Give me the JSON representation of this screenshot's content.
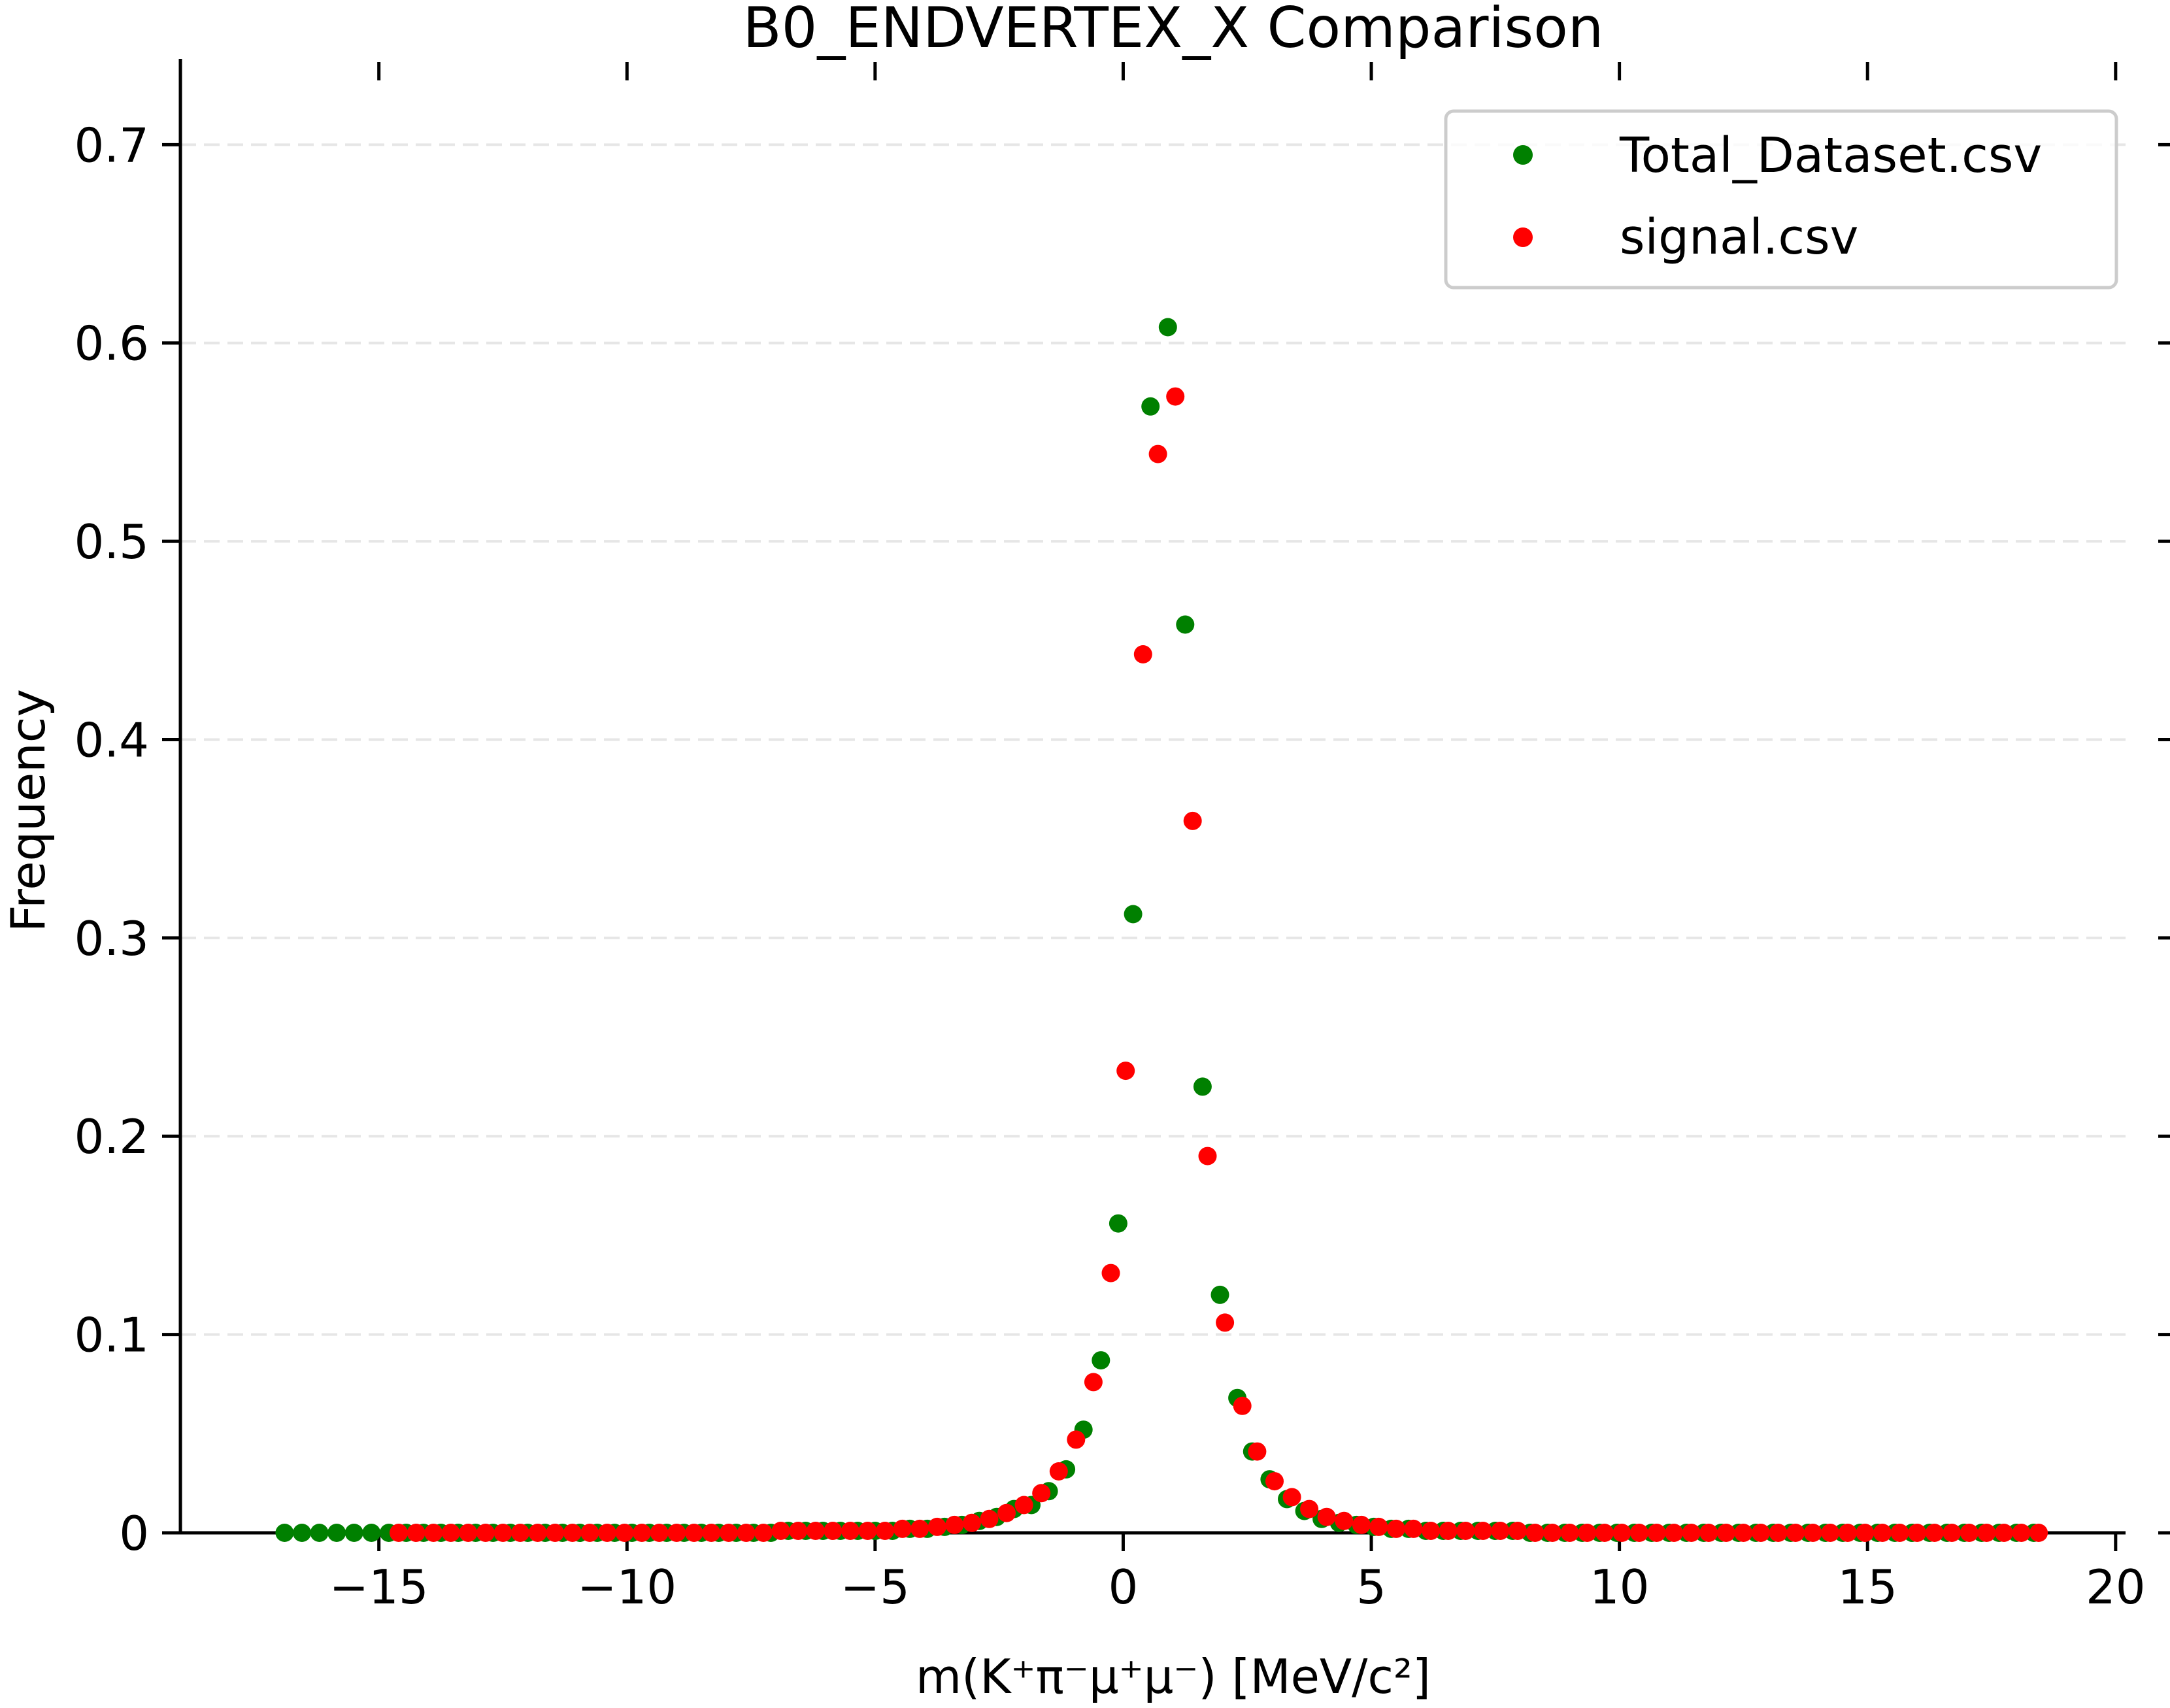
{
  "chart_data": {
    "type": "scatter",
    "title": "B0_ENDVERTEX_X Comparison",
    "xlabel": "m(K⁺π⁻μ⁺μ⁻) [MeV/c²]",
    "ylabel": "Frequency",
    "xlim": [
      -19,
      20.2
    ],
    "ylim": [
      0,
      0.74
    ],
    "xticks": [
      -15,
      -10,
      -5,
      0,
      5,
      10,
      15,
      20
    ],
    "xtick_labels": [
      "−15",
      "−10",
      "−5",
      "0",
      "5",
      "10",
      "15",
      "20"
    ],
    "yticks": [
      0,
      0.1,
      0.2,
      0.3,
      0.4,
      0.5,
      0.6,
      0.7
    ],
    "ytick_labels": [
      "0",
      "0.1",
      "0.2",
      "0.3",
      "0.4",
      "0.5",
      "0.6",
      "0.7"
    ],
    "grid": "horizontal dashed",
    "legend_position": "top-right",
    "series": [
      {
        "name": "Total_Dataset.csv",
        "color": "#008000",
        "points": [
          [
            -16.9,
            0
          ],
          [
            -16.55,
            0
          ],
          [
            -16.2,
            0
          ],
          [
            -15.85,
            0
          ],
          [
            -15.5,
            0
          ],
          [
            -15.15,
            0
          ],
          [
            -14.8,
            0
          ],
          [
            -14.45,
            0
          ],
          [
            -14.1,
            0
          ],
          [
            -13.75,
            0
          ],
          [
            -13.4,
            0
          ],
          [
            -13.05,
            0
          ],
          [
            -12.7,
            0
          ],
          [
            -12.35,
            0
          ],
          [
            -12.0,
            0
          ],
          [
            -11.65,
            0
          ],
          [
            -11.3,
            0
          ],
          [
            -10.95,
            0
          ],
          [
            -10.6,
            0
          ],
          [
            -10.25,
            0
          ],
          [
            -9.9,
            0
          ],
          [
            -9.55,
            0
          ],
          [
            -9.2,
            0
          ],
          [
            -8.85,
            0
          ],
          [
            -8.5,
            0
          ],
          [
            -8.15,
            0
          ],
          [
            -7.8,
            0
          ],
          [
            -7.45,
            0
          ],
          [
            -7.1,
            0
          ],
          [
            -6.75,
            0.001
          ],
          [
            -6.4,
            0.001
          ],
          [
            -6.05,
            0.001
          ],
          [
            -5.7,
            0.001
          ],
          [
            -5.35,
            0.001
          ],
          [
            -5.0,
            0.001
          ],
          [
            -4.65,
            0.001
          ],
          [
            -4.3,
            0.002
          ],
          [
            -3.95,
            0.002
          ],
          [
            -3.6,
            0.003
          ],
          [
            -3.25,
            0.004
          ],
          [
            -2.9,
            0.006
          ],
          [
            -2.55,
            0.008
          ],
          [
            -2.2,
            0.012
          ],
          [
            -1.85,
            0.014
          ],
          [
            -1.5,
            0.021
          ],
          [
            -1.15,
            0.032
          ],
          [
            -0.8,
            0.052
          ],
          [
            -0.45,
            0.087
          ],
          [
            -0.1,
            0.156
          ],
          [
            0.2,
            0.312
          ],
          [
            0.55,
            0.568
          ],
          [
            0.9,
            0.608
          ],
          [
            1.25,
            0.458
          ],
          [
            1.6,
            0.225
          ],
          [
            1.95,
            0.12
          ],
          [
            2.3,
            0.068
          ],
          [
            2.6,
            0.041
          ],
          [
            2.95,
            0.027
          ],
          [
            3.3,
            0.017
          ],
          [
            3.65,
            0.011
          ],
          [
            4.0,
            0.007
          ],
          [
            4.35,
            0.005
          ],
          [
            4.7,
            0.004
          ],
          [
            5.05,
            0.003
          ],
          [
            5.4,
            0.002
          ],
          [
            5.75,
            0.002
          ],
          [
            6.1,
            0.001
          ],
          [
            6.45,
            0.001
          ],
          [
            6.8,
            0.001
          ],
          [
            7.15,
            0.001
          ],
          [
            7.5,
            0.001
          ],
          [
            7.85,
            0.001
          ],
          [
            8.2,
            0
          ],
          [
            8.55,
            0
          ],
          [
            8.9,
            0
          ],
          [
            9.25,
            0
          ],
          [
            9.6,
            0
          ],
          [
            9.95,
            0
          ],
          [
            10.3,
            0
          ],
          [
            10.65,
            0
          ],
          [
            11.0,
            0
          ],
          [
            11.35,
            0
          ],
          [
            11.7,
            0
          ],
          [
            12.05,
            0
          ],
          [
            12.4,
            0
          ],
          [
            12.75,
            0
          ],
          [
            13.1,
            0
          ],
          [
            13.45,
            0
          ],
          [
            13.8,
            0
          ],
          [
            14.15,
            0
          ],
          [
            14.5,
            0
          ],
          [
            14.85,
            0
          ],
          [
            15.2,
            0
          ],
          [
            15.55,
            0
          ],
          [
            15.9,
            0
          ],
          [
            16.25,
            0
          ],
          [
            16.6,
            0
          ],
          [
            16.95,
            0
          ],
          [
            17.3,
            0
          ],
          [
            17.65,
            0
          ],
          [
            18.0,
            0
          ],
          [
            18.35,
            0
          ]
        ]
      },
      {
        "name": "signal.csv",
        "color": "#ff0000",
        "points": [
          [
            -14.6,
            0
          ],
          [
            -14.25,
            0
          ],
          [
            -13.9,
            0
          ],
          [
            -13.55,
            0
          ],
          [
            -13.2,
            0
          ],
          [
            -12.85,
            0
          ],
          [
            -12.5,
            0
          ],
          [
            -12.15,
            0
          ],
          [
            -11.8,
            0
          ],
          [
            -11.45,
            0
          ],
          [
            -11.1,
            0
          ],
          [
            -10.75,
            0
          ],
          [
            -10.4,
            0
          ],
          [
            -10.05,
            0
          ],
          [
            -9.7,
            0
          ],
          [
            -9.35,
            0
          ],
          [
            -9.0,
            0
          ],
          [
            -8.65,
            0
          ],
          [
            -8.3,
            0
          ],
          [
            -7.95,
            0
          ],
          [
            -7.6,
            0
          ],
          [
            -7.25,
            0
          ],
          [
            -6.9,
            0.001
          ],
          [
            -6.55,
            0.001
          ],
          [
            -6.2,
            0.001
          ],
          [
            -5.85,
            0.001
          ],
          [
            -5.5,
            0.001
          ],
          [
            -5.15,
            0.001
          ],
          [
            -4.8,
            0.001
          ],
          [
            -4.45,
            0.002
          ],
          [
            -4.1,
            0.002
          ],
          [
            -3.75,
            0.003
          ],
          [
            -3.4,
            0.004
          ],
          [
            -3.05,
            0.005
          ],
          [
            -2.7,
            0.007
          ],
          [
            -2.35,
            0.01
          ],
          [
            -2.0,
            0.014
          ],
          [
            -1.65,
            0.02
          ],
          [
            -1.3,
            0.031
          ],
          [
            -0.95,
            0.047
          ],
          [
            -0.6,
            0.076
          ],
          [
            -0.25,
            0.131
          ],
          [
            0.05,
            0.233
          ],
          [
            0.4,
            0.443
          ],
          [
            0.7,
            0.544
          ],
          [
            1.05,
            0.573
          ],
          [
            1.4,
            0.359
          ],
          [
            1.7,
            0.19
          ],
          [
            2.05,
            0.106
          ],
          [
            2.4,
            0.064
          ],
          [
            2.7,
            0.041
          ],
          [
            3.05,
            0.026
          ],
          [
            3.4,
            0.018
          ],
          [
            3.75,
            0.012
          ],
          [
            4.1,
            0.008
          ],
          [
            4.45,
            0.006
          ],
          [
            4.8,
            0.004
          ],
          [
            5.15,
            0.003
          ],
          [
            5.5,
            0.002
          ],
          [
            5.85,
            0.002
          ],
          [
            6.2,
            0.001
          ],
          [
            6.55,
            0.001
          ],
          [
            6.9,
            0.001
          ],
          [
            7.25,
            0.001
          ],
          [
            7.6,
            0.001
          ],
          [
            7.95,
            0.001
          ],
          [
            8.3,
            0
          ],
          [
            8.65,
            0
          ],
          [
            9.0,
            0
          ],
          [
            9.35,
            0
          ],
          [
            9.7,
            0
          ],
          [
            10.05,
            0
          ],
          [
            10.4,
            0
          ],
          [
            10.75,
            0
          ],
          [
            11.1,
            0
          ],
          [
            11.45,
            0
          ],
          [
            11.8,
            0
          ],
          [
            12.15,
            0
          ],
          [
            12.5,
            0
          ],
          [
            12.85,
            0
          ],
          [
            13.2,
            0
          ],
          [
            13.55,
            0
          ],
          [
            13.9,
            0
          ],
          [
            14.25,
            0
          ],
          [
            14.6,
            0
          ],
          [
            14.95,
            0
          ],
          [
            15.3,
            0
          ],
          [
            15.65,
            0
          ],
          [
            16.0,
            0
          ],
          [
            16.35,
            0
          ],
          [
            16.7,
            0
          ],
          [
            17.05,
            0
          ],
          [
            17.4,
            0
          ],
          [
            17.75,
            0
          ],
          [
            18.1,
            0
          ],
          [
            18.45,
            0
          ]
        ]
      }
    ]
  }
}
